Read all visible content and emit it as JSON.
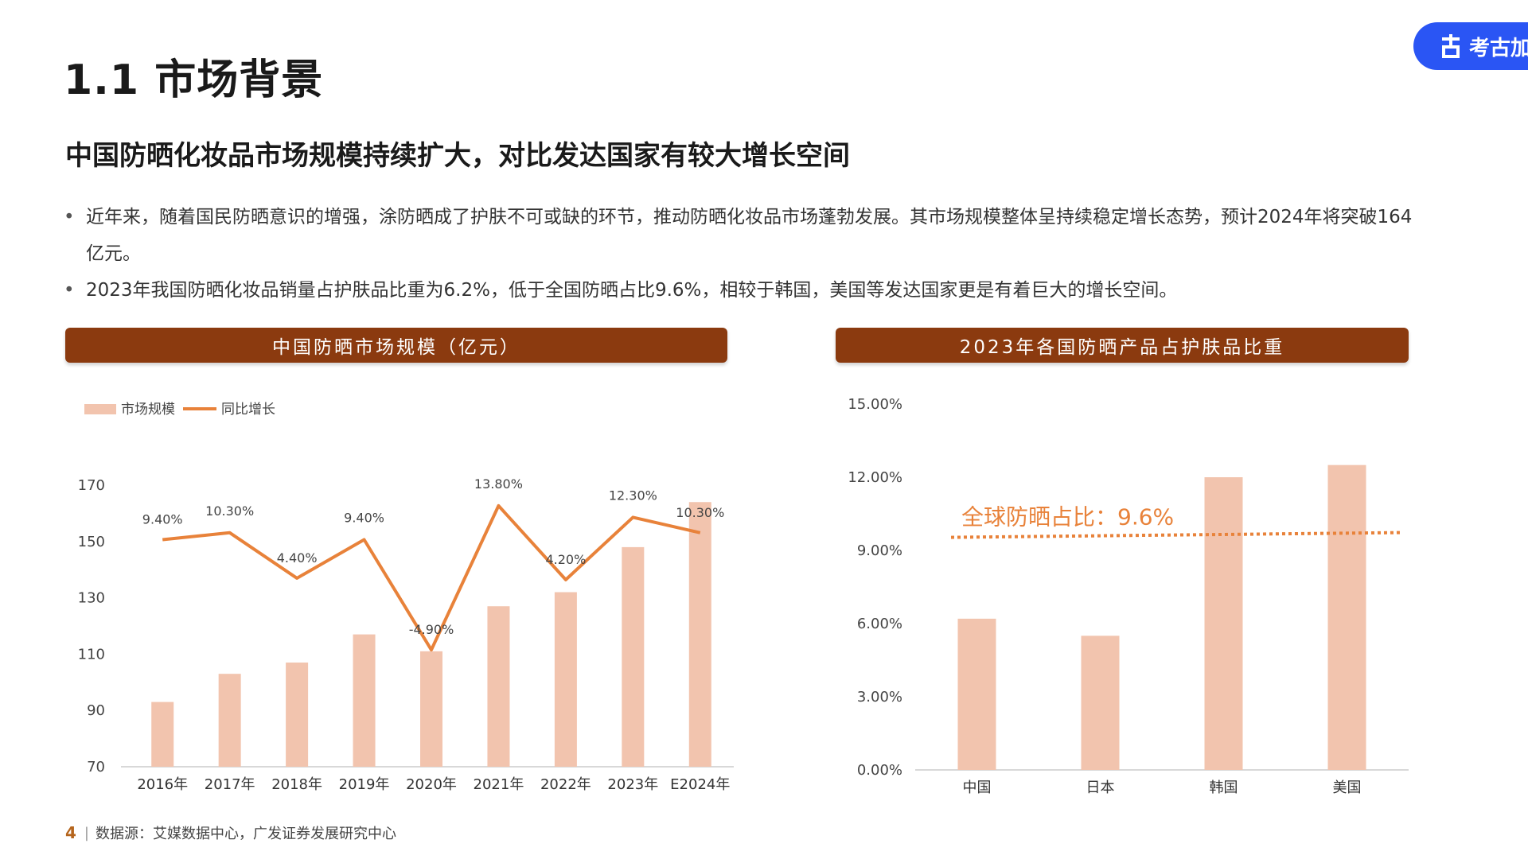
{
  "title": "1.1 市场背景",
  "brand": "考古加",
  "subtitle": "中国防晒化妆品市场规模持续扩大，对比发达国家有较大增长空间",
  "bullets": [
    "近年来，随着国民防晒意识的增强，涂防晒成了护肤不可或缺的环节，推动防晒化妆品市场蓬勃发展。其市场规模整体呈持续稳定增长态势，预计2024年将突破164亿元。",
    "2023年我国防晒化妆品销量占护肤品比重为6.2%，低于全国防晒占比9.6%，相较于韩国，美国等发达国家更是有着巨大的增长空间。"
  ],
  "footer": {
    "page": "4",
    "source": "数据源：艾媒数据中心，广发证券发展研究中心"
  },
  "colors": {
    "bar": "#f2c4ae",
    "line": "#e8823a",
    "header": "#8b3a0f",
    "brand": "#2a55f4"
  },
  "chart_data": [
    {
      "type": "bar",
      "title": "中国防晒市场规模（亿元）",
      "categories": [
        "2016年",
        "2017年",
        "2018年",
        "2019年",
        "2020年",
        "2021年",
        "2022年",
        "2023年",
        "E2024年"
      ],
      "ylim": [
        70,
        170
      ],
      "yticks": [
        "70",
        "90",
        "110",
        "130",
        "150",
        "170"
      ],
      "legend_position": "top-left",
      "series": [
        {
          "name": "市场规模",
          "kind": "bar",
          "values": [
            93,
            103,
            107,
            117,
            111,
            127,
            132,
            148,
            164
          ]
        },
        {
          "name": "同比增长",
          "kind": "line",
          "values": [
            9.4,
            10.3,
            4.4,
            9.4,
            -4.9,
            13.8,
            4.2,
            12.3,
            10.3
          ],
          "labels": [
            "9.40%",
            "10.30%",
            "4.40%",
            "9.40%",
            "-4.90%",
            "13.80%",
            "4.20%",
            "12.30%",
            "10.30%"
          ]
        }
      ]
    },
    {
      "type": "bar",
      "title": "2023年各国防晒产品占护肤品比重",
      "categories": [
        "中国",
        "日本",
        "韩国",
        "美国"
      ],
      "values": [
        6.2,
        5.5,
        12.0,
        12.5
      ],
      "ylim": [
        0,
        15
      ],
      "yticks": [
        "0.00%",
        "3.00%",
        "6.00%",
        "9.00%",
        "12.00%",
        "15.00%"
      ],
      "reference_line": {
        "value": 9.6,
        "label": "全球防晒占比：9.6%"
      }
    }
  ]
}
